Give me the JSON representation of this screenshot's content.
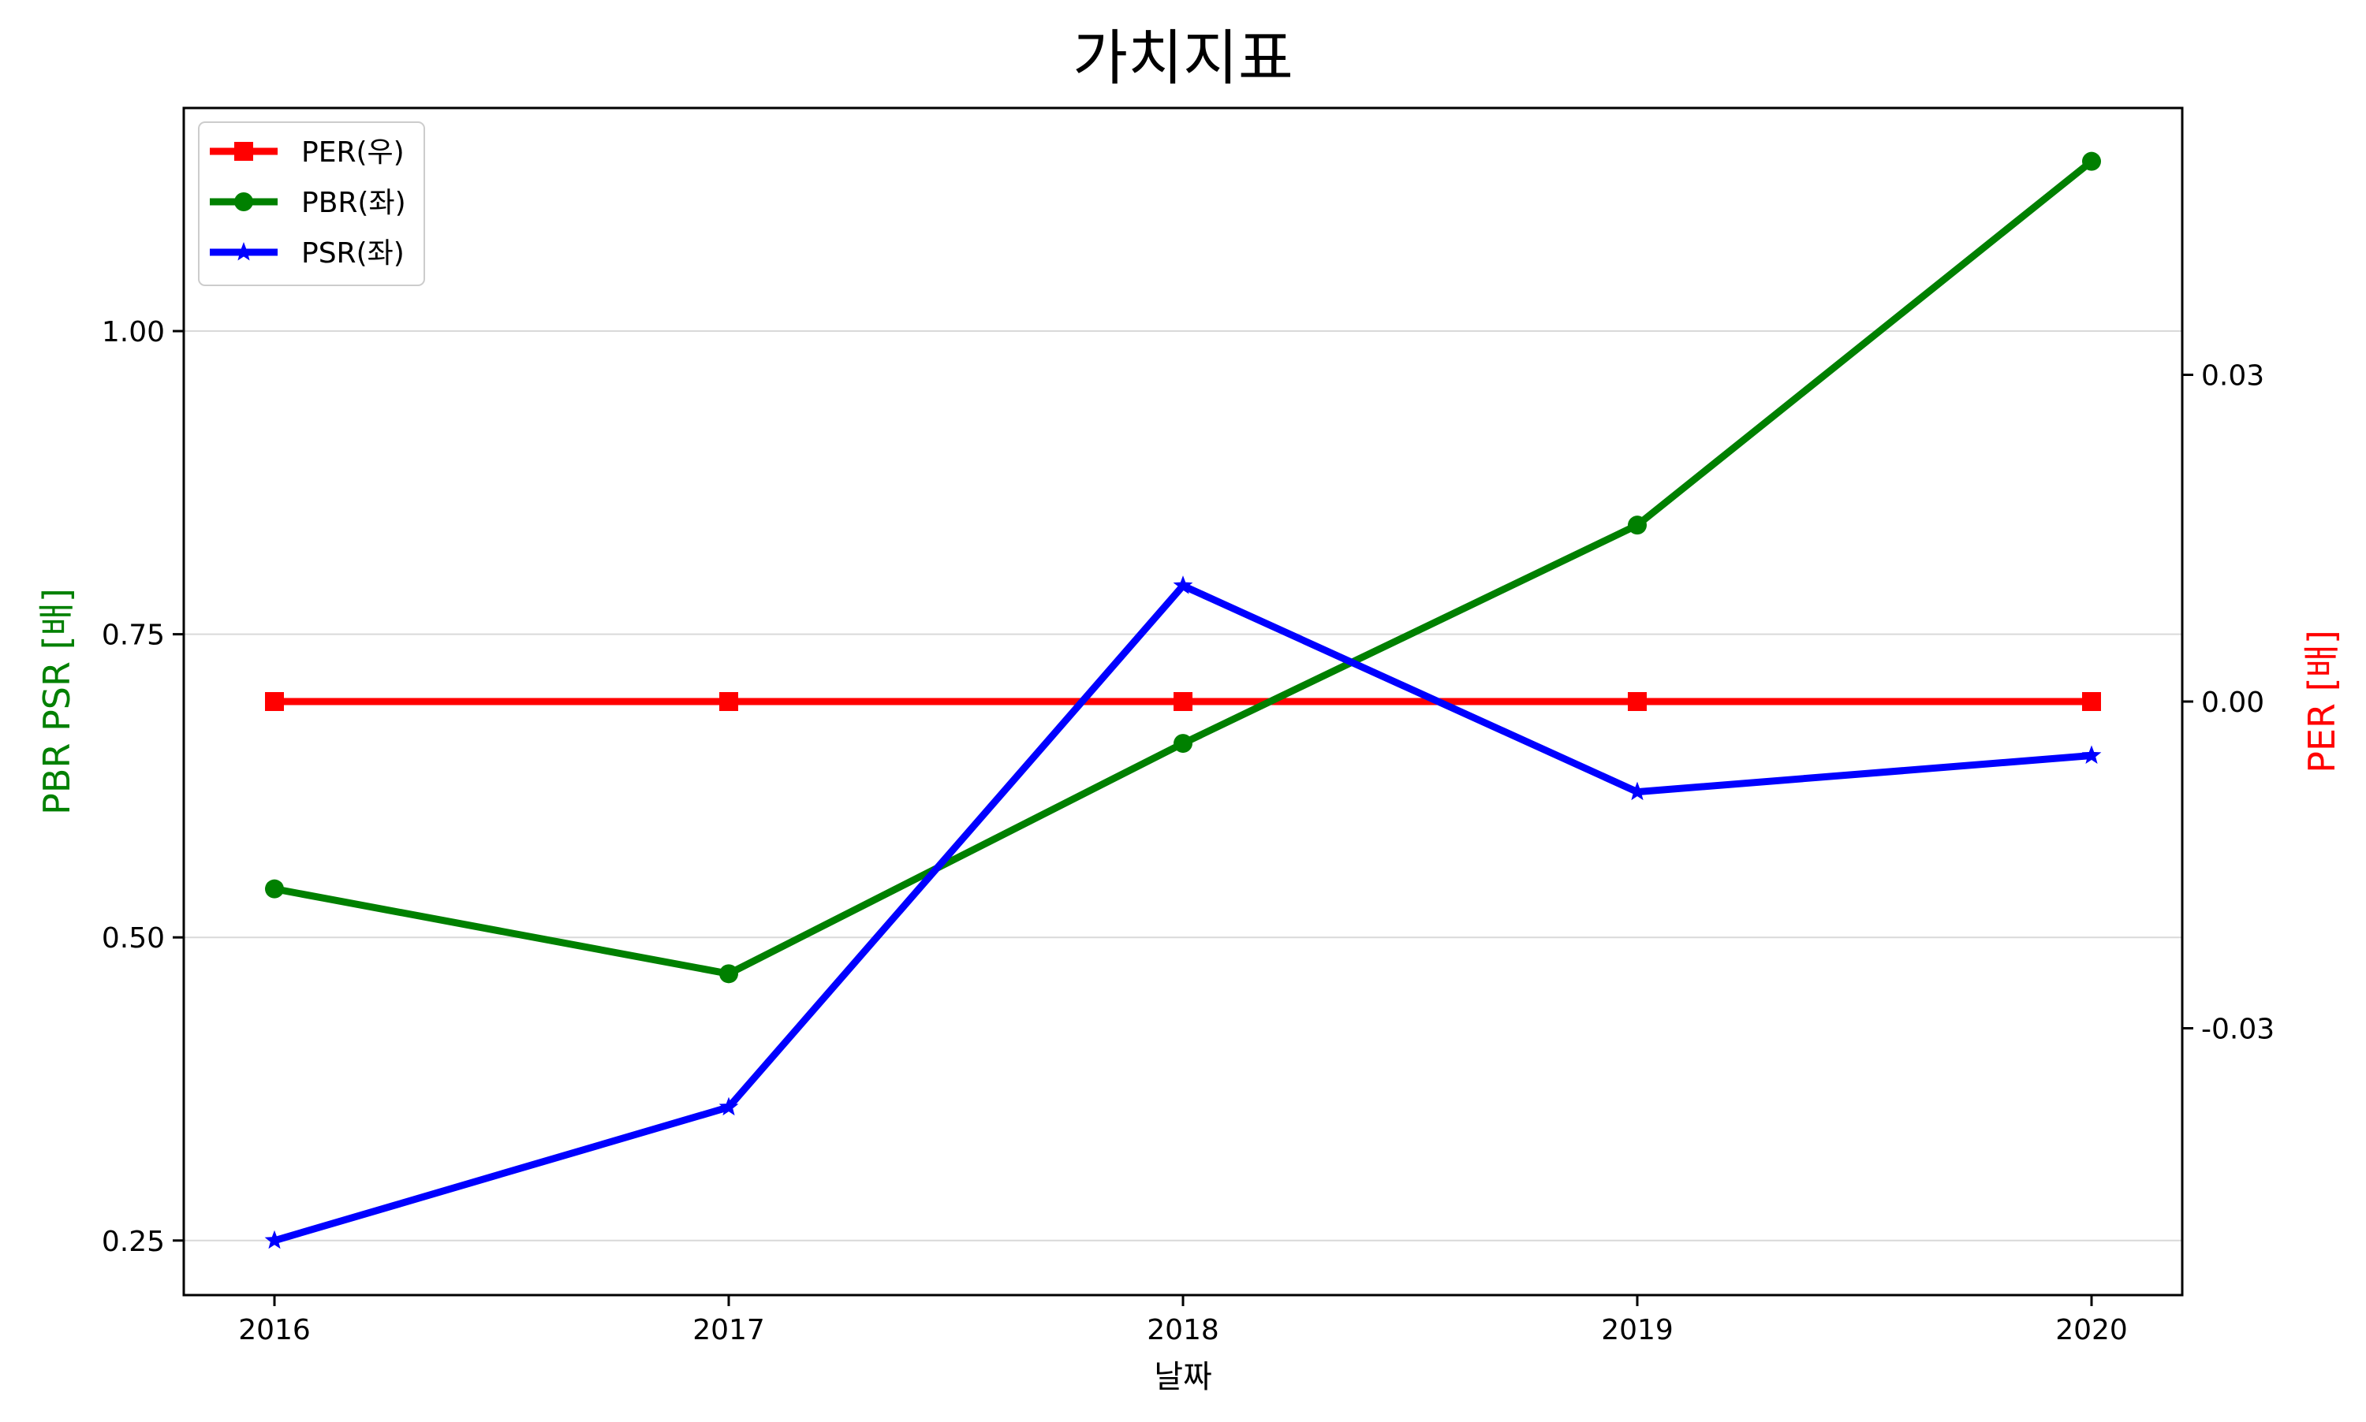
{
  "chart_data": {
    "type": "line",
    "title": "가치지표",
    "xlabel": "날짜",
    "ylabel_left": "PBR PSR [배]",
    "ylabel_right": "PER [배]",
    "categories": [
      "2016",
      "2017",
      "2018",
      "2019",
      "2020"
    ],
    "y_left": {
      "ylim": [
        0.205,
        1.184
      ],
      "ticks": [
        0.25,
        0.5,
        0.75,
        1.0
      ],
      "tick_labels": [
        "0.25",
        "0.50",
        "0.75",
        "1.00"
      ]
    },
    "y_right": {
      "ylim": [
        -0.0545,
        0.0545
      ],
      "ticks": [
        -0.03,
        0.0,
        0.03
      ],
      "tick_labels": [
        "-0.03",
        "0.00",
        "0.03"
      ]
    },
    "grid": "horizontal-left",
    "legend_position": "upper-left",
    "series": [
      {
        "name": "PER(우)",
        "axis": "right",
        "color": "#ff0000",
        "marker": "square",
        "values": [
          0,
          0,
          0,
          0,
          0
        ]
      },
      {
        "name": "PBR(좌)",
        "axis": "left",
        "color": "#008000",
        "marker": "circle",
        "values": [
          0.54,
          0.47,
          0.66,
          0.84,
          1.14
        ]
      },
      {
        "name": "PSR(좌)",
        "axis": "left",
        "color": "#0000ff",
        "marker": "star",
        "values": [
          0.25,
          0.36,
          0.79,
          0.62,
          0.65
        ]
      }
    ]
  }
}
